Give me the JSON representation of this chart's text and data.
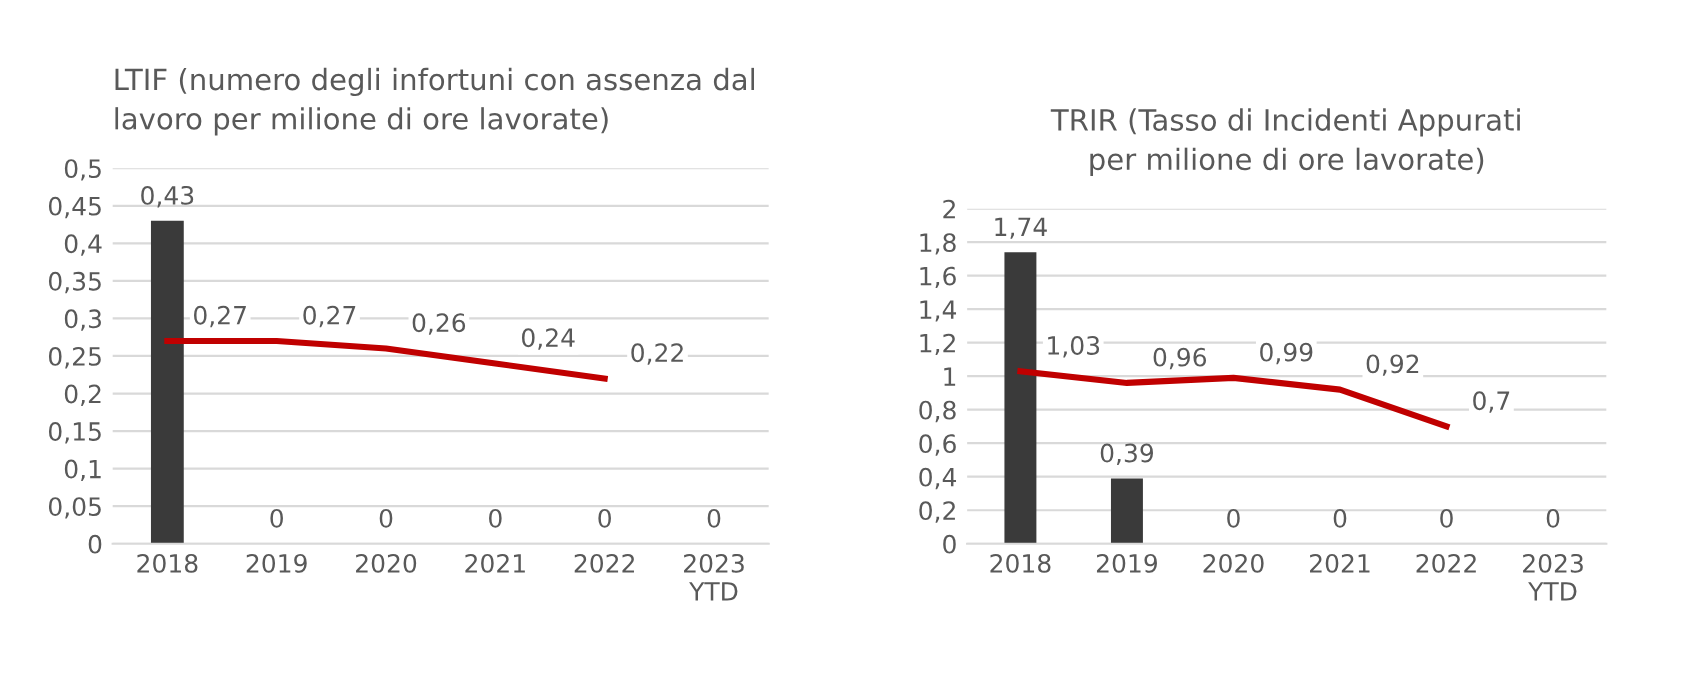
{
  "chart_data": [
    {
      "type": "bar",
      "title": "LTIF (numero degli infortuni con assenza dal\nlavoro per milione di ore lavorate)",
      "categories": [
        "2018",
        "2019",
        "2020",
        "2021",
        "2022",
        "2023\nYTD"
      ],
      "ylim": [
        0,
        0.5
      ],
      "yticks": [
        {
          "value": 0,
          "label": "0"
        },
        {
          "value": 0.05,
          "label": "0,05"
        },
        {
          "value": 0.1,
          "label": "0,1"
        },
        {
          "value": 0.15,
          "label": "0,15"
        },
        {
          "value": 0.2,
          "label": "0,2"
        },
        {
          "value": 0.25,
          "label": "0,25"
        },
        {
          "value": 0.3,
          "label": "0,3"
        },
        {
          "value": 0.35,
          "label": "0,35"
        },
        {
          "value": 0.4,
          "label": "0,4"
        },
        {
          "value": 0.45,
          "label": "0,45"
        },
        {
          "value": 0.5,
          "label": "0,5"
        }
      ],
      "grid": "y",
      "series": [
        {
          "color": "#3a3a3a",
          "values": [
            0.43,
            0,
            0,
            0,
            0,
            0
          ],
          "value_labels": [
            "0,43",
            "0",
            "0",
            "0",
            "0",
            "0"
          ]
        },
        {
          "type": "line",
          "color": "#c00000",
          "values": [
            0.27,
            0.27,
            0.26,
            0.24,
            0.22,
            null
          ],
          "value_labels": [
            "0,27",
            "0,27",
            "0,26",
            "0,24",
            "0,22",
            null
          ]
        }
      ]
    },
    {
      "type": "bar",
      "title": "TRIR (Tasso di Incidenti Appurati\nper milione di ore lavorate)",
      "categories": [
        "2018",
        "2019",
        "2020",
        "2021",
        "2022",
        "2023\nYTD"
      ],
      "ylim": [
        0,
        2
      ],
      "yticks": [
        {
          "value": 0,
          "label": "0"
        },
        {
          "value": 0.2,
          "label": "0,2"
        },
        {
          "value": 0.4,
          "label": "0,4"
        },
        {
          "value": 0.6,
          "label": "0,6"
        },
        {
          "value": 0.8,
          "label": "0,8"
        },
        {
          "value": 1,
          "label": "1"
        },
        {
          "value": 1.2,
          "label": "1,2"
        },
        {
          "value": 1.4,
          "label": "1,4"
        },
        {
          "value": 1.6,
          "label": "1,6"
        },
        {
          "value": 1.8,
          "label": "1,8"
        },
        {
          "value": 2,
          "label": "2"
        }
      ],
      "grid": "y",
      "series": [
        {
          "color": "#3a3a3a",
          "values": [
            1.74,
            0.39,
            0,
            0,
            0,
            0
          ],
          "value_labels": [
            "1,74",
            "0,39",
            "0",
            "0",
            "0",
            "0"
          ]
        },
        {
          "type": "line",
          "color": "#c00000",
          "values": [
            1.03,
            0.96,
            0.99,
            0.92,
            0.7,
            null
          ],
          "value_labels": [
            "1,03",
            "0,96",
            "0,99",
            "0,92",
            "0,7",
            null
          ]
        }
      ]
    }
  ]
}
